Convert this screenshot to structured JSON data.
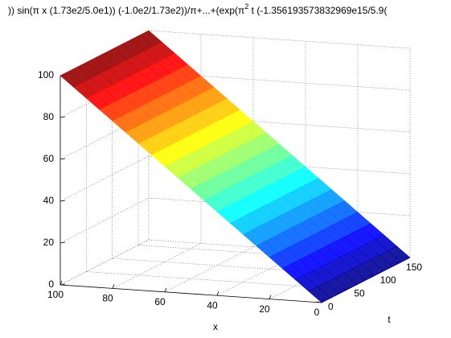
{
  "chart_data": {
    "type": "mesh",
    "title": [
      ")) sin(π x (1.73e2/5.0e1)) (-1.0e2/1.73e2))/π+...+(exp(π",
      "2",
      " t (-1.356193573832969e15/5.9("
    ],
    "xlabel": "x",
    "ylabel": "t",
    "x": [
      0,
      5,
      10,
      15,
      20,
      25,
      30,
      35,
      40,
      45,
      50,
      55,
      60,
      65,
      70,
      75,
      80,
      85,
      90,
      95,
      100
    ],
    "t": [
      0,
      17,
      34,
      51,
      68,
      85,
      102,
      119,
      136,
      153,
      170
    ],
    "z": [
      [
        0,
        5,
        10,
        15,
        20,
        25,
        30,
        35,
        40,
        45,
        50,
        55,
        60,
        65,
        70,
        75,
        80,
        85,
        90,
        95,
        100
      ],
      [
        0,
        5,
        10,
        15,
        20,
        25,
        30,
        35,
        40,
        45,
        50,
        55,
        60,
        65,
        70,
        75,
        80,
        85,
        90,
        95,
        100
      ],
      [
        0,
        5,
        10,
        15,
        20,
        25,
        30,
        35,
        40,
        45,
        50,
        55,
        60,
        65,
        70,
        75,
        80,
        85,
        90,
        95,
        100
      ],
      [
        0,
        5,
        10,
        15,
        20,
        25,
        30,
        35,
        40,
        45,
        50,
        55,
        60,
        65,
        70,
        75,
        80,
        85,
        90,
        95,
        100
      ],
      [
        0,
        5,
        10,
        15,
        20,
        25,
        30,
        35,
        40,
        45,
        50,
        55,
        60,
        65,
        70,
        75,
        80,
        85,
        90,
        95,
        100
      ],
      [
        0,
        5,
        10,
        15,
        20,
        25,
        30,
        35,
        40,
        45,
        50,
        55,
        60,
        65,
        70,
        75,
        80,
        85,
        90,
        95,
        100
      ],
      [
        0,
        5,
        10,
        15,
        20,
        25,
        30,
        35,
        40,
        45,
        50,
        55,
        60,
        65,
        70,
        75,
        80,
        85,
        90,
        95,
        100
      ],
      [
        0,
        5,
        10,
        15,
        20,
        25,
        30,
        35,
        40,
        45,
        50,
        55,
        60,
        65,
        70,
        75,
        80,
        85,
        90,
        95,
        100
      ],
      [
        0,
        5,
        10,
        15,
        20,
        25,
        30,
        35,
        40,
        45,
        50,
        55,
        60,
        65,
        70,
        75,
        80,
        85,
        90,
        95,
        100
      ],
      [
        0,
        5,
        10,
        15,
        20,
        25,
        30,
        35,
        40,
        45,
        50,
        55,
        60,
        65,
        70,
        75,
        80,
        85,
        90,
        95,
        100
      ],
      [
        0,
        5,
        10,
        15,
        20,
        25,
        30,
        35,
        40,
        45,
        50,
        55,
        60,
        65,
        70,
        75,
        80,
        85,
        90,
        95,
        100
      ]
    ],
    "xlim": [
      0,
      100
    ],
    "xticks": [
      0,
      20,
      40,
      60,
      80,
      100
    ],
    "tlim": [
      0,
      170
    ],
    "tticks": [
      0,
      50,
      100,
      150
    ],
    "zlim": [
      0,
      100
    ],
    "zticks": [
      0,
      20,
      40,
      60,
      80,
      100
    ],
    "colormap": "jet",
    "grid": true
  }
}
